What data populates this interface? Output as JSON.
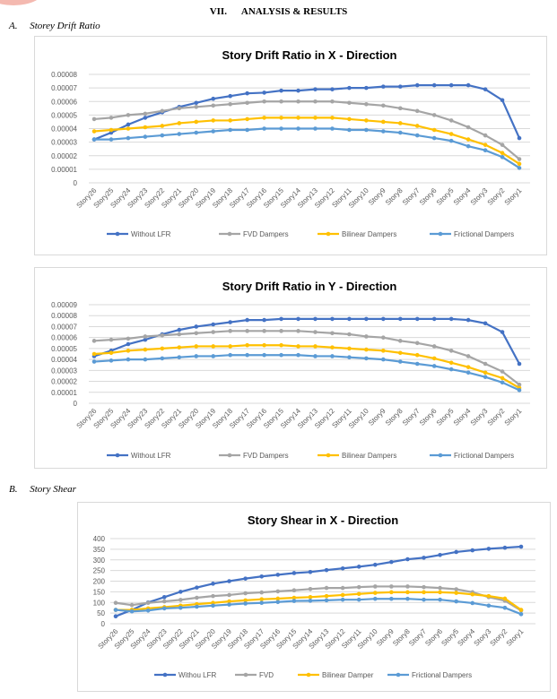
{
  "header": {
    "section_number": "VII.",
    "section_title": "ANALYSIS & RESULTS"
  },
  "subsections": [
    {
      "label": "A.",
      "title": "Storey Drift Ratio"
    },
    {
      "label": "B.",
      "title": "Story Shear"
    }
  ],
  "colors": {
    "without": "#4472C4",
    "fvd": "#A5A5A5",
    "bilinear": "#FFC000",
    "frictional": "#5B9BD5"
  },
  "chart_data": [
    {
      "type": "line",
      "title": "Story Drift Ratio in X - Direction",
      "categories": [
        "Story26",
        "Story25",
        "Story24",
        "Story23",
        "Story22",
        "Story21",
        "Story20",
        "Story19",
        "Story18",
        "Story17",
        "Story16",
        "Story15",
        "Story14",
        "Story13",
        "Story12",
        "Story11",
        "Story10",
        "Story9",
        "Story8",
        "Story7",
        "Story6",
        "Story5",
        "Story4",
        "Story3",
        "Story2",
        "Story1"
      ],
      "yticks": [
        "0",
        "0.00001",
        "0.00002",
        "0.00003",
        "0.00004",
        "0.00005",
        "0.00006",
        "0.00007",
        "0.00008"
      ],
      "ylim": [
        0,
        8e-05
      ],
      "grid": true,
      "legend": "bottom",
      "series": [
        {
          "name": "Without LFR",
          "values": [
            3.2e-05,
            3.7e-05,
            4.3e-05,
            4.8e-05,
            5.2e-05,
            5.6e-05,
            5.9e-05,
            6.2e-05,
            6.4e-05,
            6.6e-05,
            6.65e-05,
            6.8e-05,
            6.8e-05,
            6.9e-05,
            6.9e-05,
            7e-05,
            7e-05,
            7.1e-05,
            7.1e-05,
            7.2e-05,
            7.2e-05,
            7.2e-05,
            7.2e-05,
            6.9e-05,
            6.1e-05,
            3.3e-05
          ]
        },
        {
          "name": "FVD Dampers",
          "values": [
            4.7e-05,
            4.8e-05,
            5e-05,
            5.1e-05,
            5.3e-05,
            5.5e-05,
            5.6e-05,
            5.7e-05,
            5.8e-05,
            5.9e-05,
            6e-05,
            6e-05,
            6e-05,
            6e-05,
            6e-05,
            5.9e-05,
            5.8e-05,
            5.7e-05,
            5.5e-05,
            5.3e-05,
            5e-05,
            4.6e-05,
            4.1e-05,
            3.5e-05,
            2.8e-05,
            1.75e-05
          ]
        },
        {
          "name": "Bilinear Dampers",
          "values": [
            3.8e-05,
            3.9e-05,
            4e-05,
            4.1e-05,
            4.2e-05,
            4.4e-05,
            4.5e-05,
            4.6e-05,
            4.6e-05,
            4.7e-05,
            4.8e-05,
            4.8e-05,
            4.8e-05,
            4.8e-05,
            4.8e-05,
            4.7e-05,
            4.6e-05,
            4.5e-05,
            4.4e-05,
            4.2e-05,
            3.9e-05,
            3.6e-05,
            3.2e-05,
            2.8e-05,
            2.2e-05,
            1.4e-05
          ]
        },
        {
          "name": "Frictional Dampers",
          "values": [
            3.2e-05,
            3.2e-05,
            3.3e-05,
            3.4e-05,
            3.5e-05,
            3.6e-05,
            3.7e-05,
            3.8e-05,
            3.9e-05,
            3.9e-05,
            4e-05,
            4e-05,
            4e-05,
            4e-05,
            4e-05,
            3.9e-05,
            3.9e-05,
            3.8e-05,
            3.7e-05,
            3.5e-05,
            3.3e-05,
            3.1e-05,
            2.7e-05,
            2.4e-05,
            1.9e-05,
            1.1e-05
          ]
        }
      ]
    },
    {
      "type": "line",
      "title": "Story Drift Ratio in Y - Direction",
      "categories": [
        "Story26",
        "Story25",
        "Story24",
        "Story23",
        "Story22",
        "Story21",
        "Story20",
        "Story19",
        "Story18",
        "Story17",
        "Story16",
        "Story15",
        "Story14",
        "Story13",
        "Story12",
        "Story11",
        "Story10",
        "Story9",
        "Story8",
        "Story7",
        "Story6",
        "Story5",
        "Story4",
        "Story3",
        "Story2",
        "Story1"
      ],
      "yticks": [
        "0",
        "0.00001",
        "0.00002",
        "0.00003",
        "0.00004",
        "0.00005",
        "0.00006",
        "0.00007",
        "0.00008",
        "0.00009"
      ],
      "ylim": [
        0,
        9e-05
      ],
      "grid": true,
      "legend": "bottom",
      "series": [
        {
          "name": "Without LFR",
          "values": [
            4.3e-05,
            4.8e-05,
            5.4e-05,
            5.8e-05,
            6.3e-05,
            6.7e-05,
            7e-05,
            7.2e-05,
            7.4e-05,
            7.6e-05,
            7.6e-05,
            7.7e-05,
            7.7e-05,
            7.7e-05,
            7.7e-05,
            7.7e-05,
            7.7e-05,
            7.7e-05,
            7.7e-05,
            7.7e-05,
            7.7e-05,
            7.7e-05,
            7.6e-05,
            7.3e-05,
            6.5e-05,
            3.6e-05
          ]
        },
        {
          "name": "FVD Dampers",
          "values": [
            5.7e-05,
            5.8e-05,
            5.9e-05,
            6.1e-05,
            6.2e-05,
            6.3e-05,
            6.4e-05,
            6.5e-05,
            6.6e-05,
            6.6e-05,
            6.6e-05,
            6.6e-05,
            6.6e-05,
            6.5e-05,
            6.4e-05,
            6.3e-05,
            6.1e-05,
            6e-05,
            5.7e-05,
            5.5e-05,
            5.2e-05,
            4.8e-05,
            4.3e-05,
            3.6e-05,
            2.9e-05,
            1.7e-05
          ]
        },
        {
          "name": "Bilinear Dampers",
          "values": [
            4.5e-05,
            4.6e-05,
            4.8e-05,
            4.9e-05,
            5e-05,
            5.1e-05,
            5.2e-05,
            5.2e-05,
            5.2e-05,
            5.3e-05,
            5.3e-05,
            5.3e-05,
            5.2e-05,
            5.2e-05,
            5.1e-05,
            5e-05,
            4.9e-05,
            4.8e-05,
            4.6e-05,
            4.4e-05,
            4.1e-05,
            3.7e-05,
            3.3e-05,
            2.8e-05,
            2.3e-05,
            1.4e-05
          ]
        },
        {
          "name": "Frictional Dampers",
          "values": [
            3.8e-05,
            3.9e-05,
            4e-05,
            4e-05,
            4.1e-05,
            4.2e-05,
            4.3e-05,
            4.3e-05,
            4.4e-05,
            4.4e-05,
            4.4e-05,
            4.4e-05,
            4.4e-05,
            4.3e-05,
            4.3e-05,
            4.2e-05,
            4.1e-05,
            4e-05,
            3.8e-05,
            3.6e-05,
            3.4e-05,
            3.1e-05,
            2.8e-05,
            2.4e-05,
            1.9e-05,
            1.2e-05
          ]
        }
      ]
    },
    {
      "type": "line",
      "title": "Story Shear in X - Direction",
      "categories": [
        "Story26",
        "Story25",
        "Story24",
        "Story23",
        "Story22",
        "Story21",
        "Story20",
        "Story19",
        "Story18",
        "Story17",
        "Story16",
        "Story15",
        "Story14",
        "Story13",
        "Story12",
        "Story11",
        "Story10",
        "Story9",
        "Story8",
        "Story7",
        "Story6",
        "Story5",
        "Story4",
        "Story3",
        "Story2",
        "Story1"
      ],
      "yticks": [
        "0",
        "50",
        "100",
        "150",
        "200",
        "250",
        "300",
        "350",
        "400"
      ],
      "ylim": [
        0,
        400
      ],
      "grid": true,
      "legend": "bottom",
      "series": [
        {
          "name": "Withou LFR",
          "values": [
            35,
            65,
            100,
            125,
            150,
            170,
            188,
            200,
            212,
            222,
            230,
            238,
            243,
            252,
            260,
            268,
            277,
            290,
            303,
            310,
            323,
            337,
            345,
            352,
            357,
            362
          ]
        },
        {
          "name": "FVD",
          "values": [
            98,
            88,
            98,
            105,
            112,
            122,
            130,
            135,
            143,
            147,
            152,
            157,
            163,
            168,
            168,
            172,
            175,
            175,
            175,
            172,
            168,
            162,
            148,
            125,
            108,
            62
          ]
        },
        {
          "name": "Bilinear Damper",
          "values": [
            65,
            65,
            72,
            78,
            85,
            92,
            98,
            105,
            110,
            115,
            118,
            122,
            125,
            130,
            135,
            140,
            145,
            148,
            148,
            148,
            148,
            145,
            138,
            130,
            118,
            65
          ]
        },
        {
          "name": "Frictional Dampers",
          "values": [
            65,
            58,
            62,
            72,
            75,
            80,
            85,
            90,
            95,
            98,
            102,
            107,
            108,
            110,
            113,
            113,
            117,
            117,
            117,
            113,
            113,
            105,
            97,
            85,
            75,
            45
          ]
        }
      ]
    }
  ]
}
